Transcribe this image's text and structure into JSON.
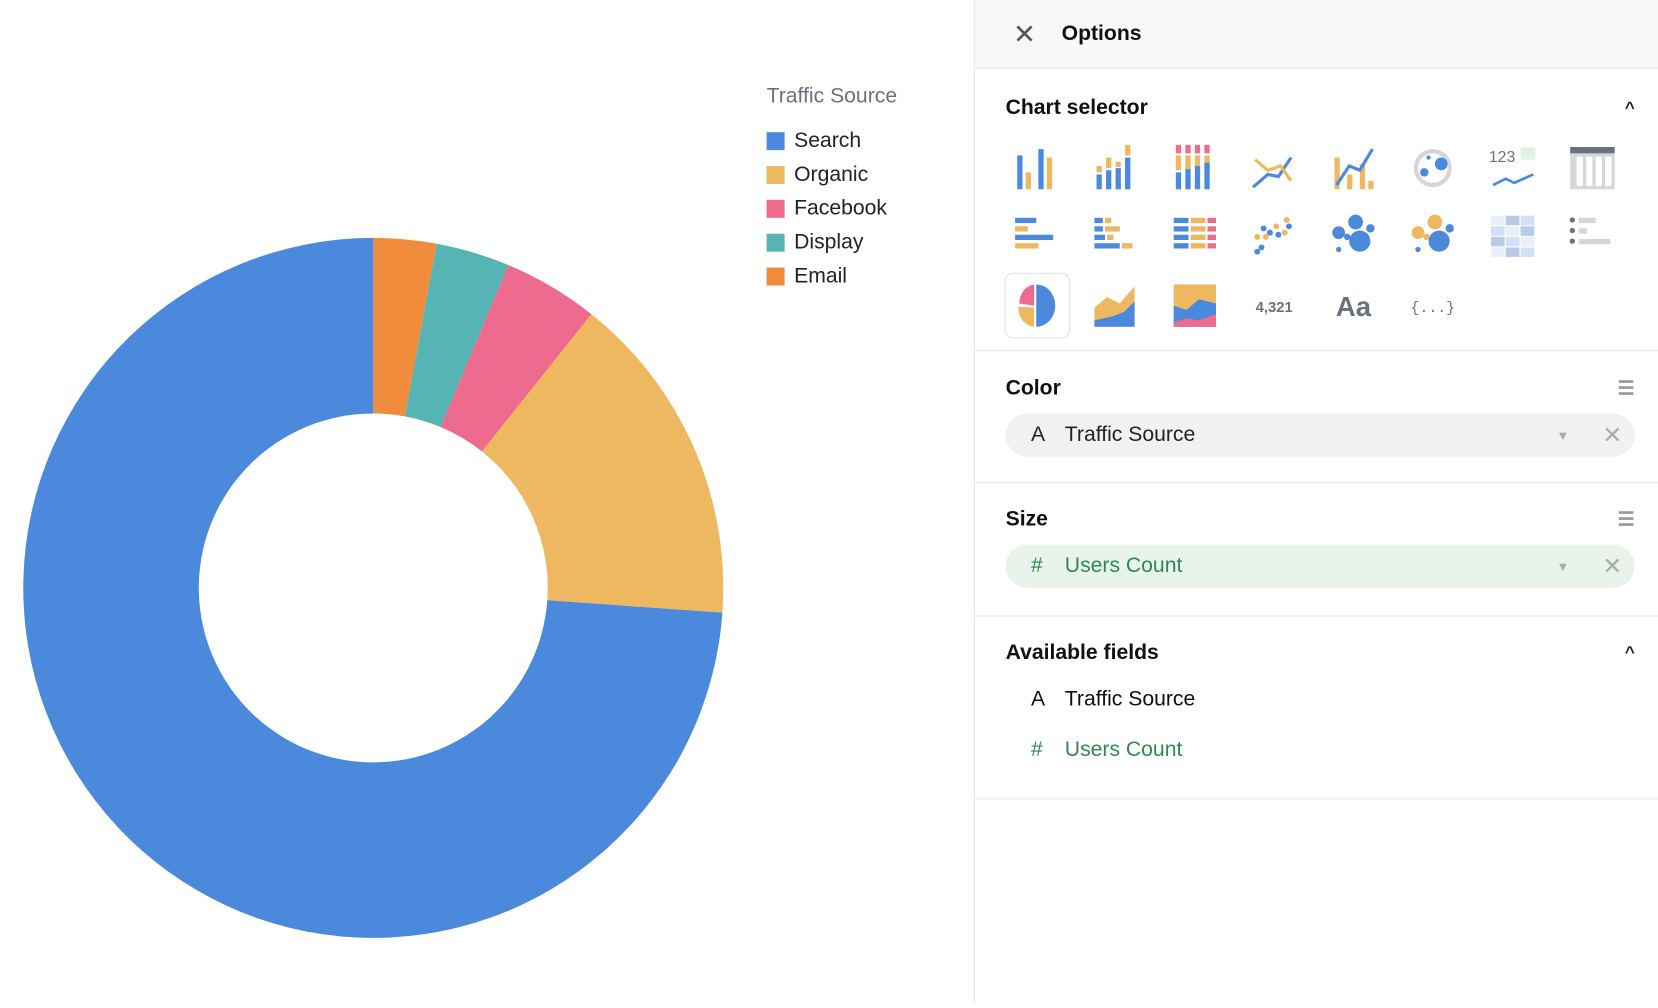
{
  "header": {
    "title": "Options",
    "close_icon": "close-icon"
  },
  "chart_data": {
    "type": "pie",
    "donut": true,
    "title": "",
    "legend_title": "Traffic Source",
    "legend_position": "top-right",
    "categories": [
      "Search",
      "Organic",
      "Facebook",
      "Display",
      "Email"
    ],
    "values": [
      73.8,
      15.4,
      4.4,
      3.4,
      2.9
    ],
    "unit": "percent (estimated share of Users Count)",
    "colors": [
      "#4a89dc",
      "#edb85f",
      "#ec6b8f",
      "#56b4b4",
      "#f08c3c"
    ],
    "draw_order_clockwise_from_top": [
      "Email",
      "Display",
      "Facebook",
      "Organic",
      "Search"
    ]
  },
  "chart_selector": {
    "title": "Chart selector",
    "selected": "pie",
    "icons": [
      "bar",
      "stacked-bar",
      "stacked-100-bar",
      "line",
      "combo",
      "map",
      "trend",
      "table",
      "row",
      "stacked-row",
      "stacked-100-row",
      "scatter",
      "bubble",
      "bubble-color",
      "pivot",
      "list",
      "pie",
      "area",
      "stacked-area",
      "number",
      "text",
      "json"
    ],
    "number_label": "4,321",
    "text_label": "Aa",
    "json_label": "{...}",
    "trend_label": "123"
  },
  "color": {
    "title": "Color",
    "field": "Traffic Source",
    "type_glyph": "A"
  },
  "size": {
    "title": "Size",
    "field": "Users Count",
    "type_glyph": "#"
  },
  "available": {
    "title": "Available fields",
    "fields": [
      {
        "name": "Traffic Source",
        "glyph": "A"
      },
      {
        "name": "Users Count",
        "glyph": "#"
      }
    ]
  }
}
